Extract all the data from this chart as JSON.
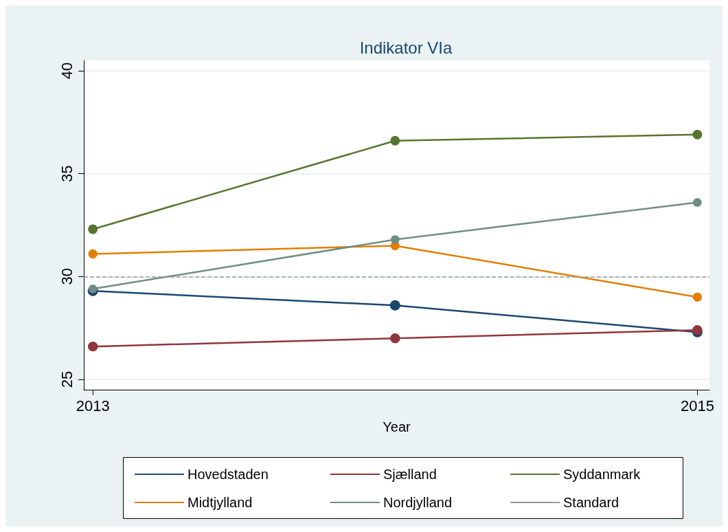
{
  "chart_data": {
    "type": "line",
    "title": "Indikator VIa",
    "xlabel": "Year",
    "x": [
      2013,
      2014,
      2015
    ],
    "xlim": [
      2012.97,
      2015.04
    ],
    "xticks": [
      2013,
      2015
    ],
    "ylim": [
      24.5,
      40.5
    ],
    "yticks": [
      25,
      30,
      35,
      40
    ],
    "grid": "y",
    "legend": "bottom",
    "marker": "circle",
    "line_style": "solid",
    "series": [
      {
        "name": "Hovedstaden",
        "color": "#1a476f",
        "values": [
          29.3,
          28.6,
          27.3
        ]
      },
      {
        "name": "Sjælland",
        "color": "#90353b",
        "values": [
          26.6,
          27.0,
          27.4
        ]
      },
      {
        "name": "Syddanmark",
        "color": "#55752f",
        "values": [
          32.3,
          36.6,
          36.9
        ]
      },
      {
        "name": "Midtjylland",
        "color": "#e37e00",
        "values": [
          31.1,
          31.5,
          29.0
        ]
      },
      {
        "name": "Nordjylland",
        "color": "#6e8e84",
        "values": [
          29.4,
          31.8,
          33.6
        ]
      }
    ],
    "ref_lines": [
      {
        "axis": "y",
        "value": 30,
        "label": "Standard",
        "color": "#999999",
        "line_style": "dashed"
      }
    ]
  }
}
